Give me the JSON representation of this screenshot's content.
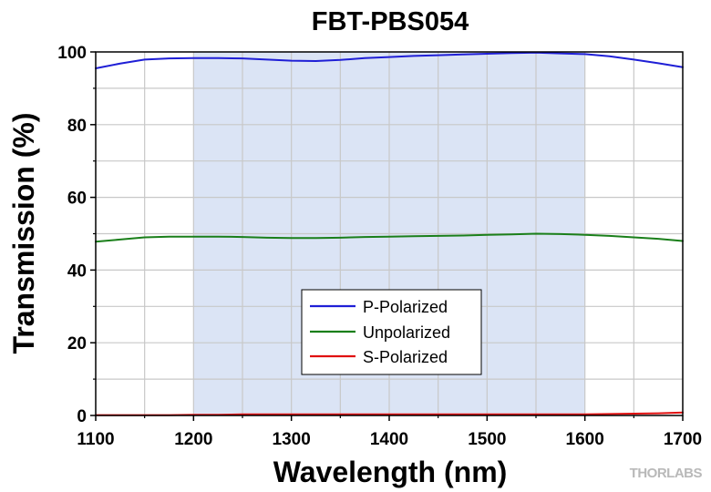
{
  "watermark": "THORLABS",
  "chart_data": {
    "type": "line",
    "title": "FBT-PBS054",
    "xlabel": "Wavelength (nm)",
    "ylabel": "Transmission (%)",
    "xlim": [
      1100,
      1700
    ],
    "ylim": [
      0,
      100
    ],
    "xticks": [
      1100,
      1200,
      1300,
      1400,
      1500,
      1600,
      1700
    ],
    "yticks": [
      0,
      20,
      40,
      60,
      80,
      100
    ],
    "grid": true,
    "legend_position": "lower-center",
    "highlight_band": {
      "x_range": [
        1200,
        1600
      ],
      "color": "#dbe4f5"
    },
    "series": [
      {
        "name": "P-Polarized",
        "color": "#1f1fd6",
        "x": [
          1100,
          1125,
          1150,
          1175,
          1200,
          1225,
          1250,
          1275,
          1300,
          1325,
          1350,
          1375,
          1400,
          1425,
          1450,
          1475,
          1500,
          1525,
          1550,
          1575,
          1600,
          1625,
          1650,
          1675,
          1700
        ],
        "values": [
          95.5,
          96.8,
          97.9,
          98.2,
          98.3,
          98.3,
          98.2,
          97.9,
          97.6,
          97.5,
          97.8,
          98.3,
          98.6,
          98.9,
          99.1,
          99.3,
          99.5,
          99.7,
          99.8,
          99.6,
          99.4,
          98.8,
          97.9,
          96.9,
          95.8
        ]
      },
      {
        "name": "Unpolarized",
        "color": "#1a7f1a",
        "x": [
          1100,
          1125,
          1150,
          1175,
          1200,
          1225,
          1250,
          1275,
          1300,
          1325,
          1350,
          1375,
          1400,
          1425,
          1450,
          1475,
          1500,
          1525,
          1550,
          1575,
          1600,
          1625,
          1650,
          1675,
          1700
        ],
        "values": [
          47.8,
          48.4,
          49.0,
          49.2,
          49.2,
          49.2,
          49.1,
          48.9,
          48.8,
          48.8,
          48.9,
          49.1,
          49.2,
          49.3,
          49.4,
          49.5,
          49.7,
          49.8,
          50.0,
          49.9,
          49.7,
          49.4,
          49.0,
          48.6,
          48.0
        ]
      },
      {
        "name": "S-Polarized",
        "color": "#e01010",
        "x": [
          1100,
          1125,
          1150,
          1175,
          1200,
          1225,
          1250,
          1275,
          1300,
          1325,
          1350,
          1375,
          1400,
          1425,
          1450,
          1475,
          1500,
          1525,
          1550,
          1575,
          1600,
          1625,
          1650,
          1675,
          1700
        ],
        "values": [
          0.1,
          0.1,
          0.1,
          0.1,
          0.2,
          0.2,
          0.3,
          0.3,
          0.3,
          0.3,
          0.3,
          0.3,
          0.3,
          0.3,
          0.3,
          0.3,
          0.3,
          0.3,
          0.3,
          0.3,
          0.3,
          0.4,
          0.5,
          0.6,
          0.8
        ]
      }
    ]
  }
}
